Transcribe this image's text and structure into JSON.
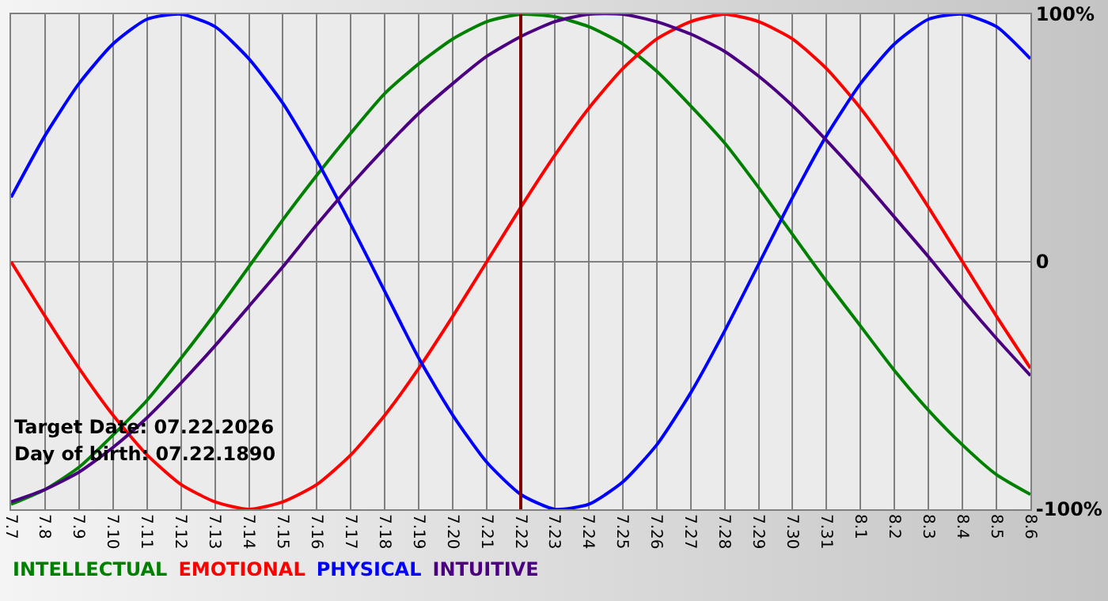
{
  "chart_data": {
    "type": "line",
    "categories": [
      "7.7",
      "7.8",
      "7.9",
      "7.10",
      "7.11",
      "7.12",
      "7.13",
      "7.14",
      "7.15",
      "7.16",
      "7.17",
      "7.18",
      "7.19",
      "7.20",
      "7.21",
      "7.22",
      "7.23",
      "7.24",
      "7.25",
      "7.26",
      "7.27",
      "7.28",
      "7.29",
      "7.30",
      "7.31",
      "8.1",
      "8.2",
      "8.3",
      "8.4",
      "8.5",
      "8.6"
    ],
    "series": [
      {
        "name": "INTELLECTUAL",
        "color": "#008000",
        "values": [
          -98,
          -92,
          -83,
          -70,
          -56,
          -39,
          -21,
          -2,
          17,
          35,
          52,
          68,
          80,
          90,
          97,
          100,
          99,
          95,
          88,
          77,
          63,
          48,
          30,
          11,
          -8,
          -26,
          -44,
          -60,
          -74,
          -86,
          -94
        ]
      },
      {
        "name": "EMOTIONAL",
        "color": "#ff0000",
        "values": [
          0,
          -22,
          -43,
          -62,
          -78,
          -90,
          -97,
          -100,
          -97,
          -90,
          -78,
          -62,
          -43,
          -22,
          0,
          22,
          43,
          62,
          78,
          90,
          97,
          100,
          97,
          90,
          78,
          62,
          43,
          22,
          0,
          -22,
          -43
        ]
      },
      {
        "name": "PHYSICAL",
        "color": "#0000ff",
        "values": [
          26,
          51,
          72,
          88,
          98,
          100,
          95,
          82,
          64,
          41,
          15,
          -12,
          -39,
          -62,
          -81,
          -94,
          -100,
          -98,
          -89,
          -74,
          -53,
          -28,
          -1,
          26,
          51,
          72,
          88,
          98,
          100,
          95,
          82
        ]
      },
      {
        "name": "INTUITIVE",
        "color": "#4b0082",
        "values": [
          -97,
          -92,
          -85,
          -75,
          -63,
          -49,
          -34,
          -18,
          -2,
          15,
          31,
          46,
          60,
          72,
          83,
          91,
          97,
          100,
          100,
          97,
          92,
          85,
          75,
          63,
          49,
          34,
          18,
          2,
          -15,
          -31,
          -46
        ]
      }
    ],
    "ylim": [
      -100,
      100
    ],
    "yticks": [
      {
        "value": 100,
        "label": "100%"
      },
      0,
      {
        "value": -100,
        "label": "-100%"
      }
    ],
    "ref_lines": [
      {
        "axis": "x",
        "value": "7.22",
        "color": "#800000"
      }
    ],
    "annotations": [
      "Target Date: 07.22.2026",
      "Day of birth: 07.22.1890"
    ],
    "grid": true,
    "legend": "bottom left",
    "marker": "none",
    "line_style": "solid"
  }
}
